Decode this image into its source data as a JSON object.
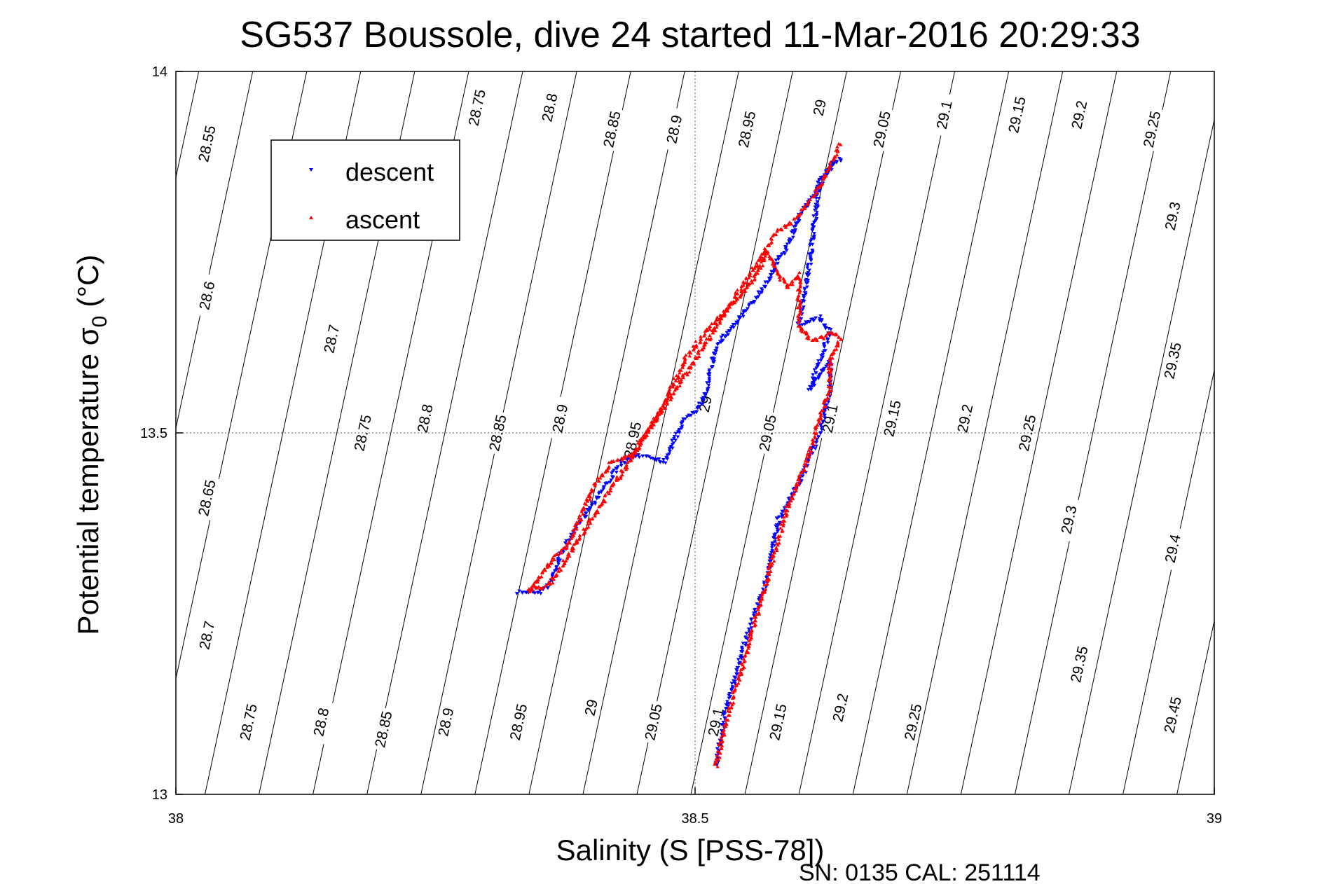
{
  "chart_data": {
    "type": "scatter",
    "title": "SG537 Boussole, dive 24 started 11-Mar-2016 20:29:33",
    "xlabel": "Salinity (S [PSS-78])",
    "ylabel_main": "Potential temperature σ",
    "ylabel_sub": "0",
    "ylabel_unit": "(°C)",
    "xlim": [
      38,
      39
    ],
    "ylim": [
      13,
      14
    ],
    "xticks": [
      38,
      38.5,
      39
    ],
    "xtick_labels": [
      "38",
      "38.5",
      "39"
    ],
    "yticks": [
      13,
      13.5,
      14
    ],
    "ytick_labels": [
      "13",
      "13.5",
      "14"
    ],
    "grid": true,
    "legend_placement": "top-left",
    "footer": "SN: 0135  CAL: 251114",
    "colors": {
      "descent": "#0000ff",
      "ascent": "#ff0000",
      "contour": "#000000",
      "grid": "#555555"
    },
    "contour_labels": [
      "28.55",
      "28.6",
      "28.65",
      "28.7",
      "28.75",
      "28.8",
      "28.85",
      "28.9",
      "28.95",
      "29",
      "29.05",
      "29.1",
      "29.15",
      "29.2",
      "29.25",
      "29.3",
      "29.35",
      "29.4",
      "29.45"
    ],
    "contour_label_positions": [
      {
        "text": "28.55",
        "s": 38.03,
        "t": 13.9
      },
      {
        "text": "28.75",
        "s": 38.29,
        "t": 13.95
      },
      {
        "text": "28.8",
        "s": 38.36,
        "t": 13.95
      },
      {
        "text": "28.85",
        "s": 38.42,
        "t": 13.92
      },
      {
        "text": "28.9",
        "s": 38.48,
        "t": 13.92
      },
      {
        "text": "28.95",
        "s": 38.55,
        "t": 13.92
      },
      {
        "text": "29",
        "s": 38.62,
        "t": 13.95
      },
      {
        "text": "29.05",
        "s": 38.68,
        "t": 13.92
      },
      {
        "text": "29.1",
        "s": 38.74,
        "t": 13.94
      },
      {
        "text": "29.15",
        "s": 38.81,
        "t": 13.94
      },
      {
        "text": "29.2",
        "s": 38.87,
        "t": 13.94
      },
      {
        "text": "29.25",
        "s": 38.94,
        "t": 13.92
      },
      {
        "text": "28.6",
        "s": 38.03,
        "t": 13.69
      },
      {
        "text": "28.7",
        "s": 38.15,
        "t": 13.63
      },
      {
        "text": "29.3",
        "s": 38.96,
        "t": 13.8
      },
      {
        "text": "29.35",
        "s": 38.96,
        "t": 13.6
      },
      {
        "text": "28.65",
        "s": 38.03,
        "t": 13.41
      },
      {
        "text": "28.75",
        "s": 38.18,
        "t": 13.5
      },
      {
        "text": "28.8",
        "s": 38.24,
        "t": 13.52
      },
      {
        "text": "28.85",
        "s": 38.31,
        "t": 13.5
      },
      {
        "text": "28.9",
        "s": 38.37,
        "t": 13.52
      },
      {
        "text": "28.95",
        "s": 38.44,
        "t": 13.49
      },
      {
        "text": "29",
        "s": 38.51,
        "t": 13.54
      },
      {
        "text": "29.05",
        "s": 38.57,
        "t": 13.5
      },
      {
        "text": "29.1",
        "s": 38.63,
        "t": 13.52
      },
      {
        "text": "29.15",
        "s": 38.69,
        "t": 13.52
      },
      {
        "text": "29.2",
        "s": 38.76,
        "t": 13.52
      },
      {
        "text": "29.25",
        "s": 38.82,
        "t": 13.5
      },
      {
        "text": "29.3",
        "s": 38.86,
        "t": 13.38
      },
      {
        "text": "29.4",
        "s": 38.96,
        "t": 13.34
      },
      {
        "text": "28.7",
        "s": 38.03,
        "t": 13.22
      },
      {
        "text": "29.35",
        "s": 38.87,
        "t": 13.18
      },
      {
        "text": "29.45",
        "s": 38.96,
        "t": 13.11
      },
      {
        "text": "28.75",
        "s": 38.07,
        "t": 13.1
      },
      {
        "text": "28.8",
        "s": 38.14,
        "t": 13.1
      },
      {
        "text": "28.85",
        "s": 38.2,
        "t": 13.09
      },
      {
        "text": "28.9",
        "s": 38.26,
        "t": 13.1
      },
      {
        "text": "28.95",
        "s": 38.33,
        "t": 13.1
      },
      {
        "text": "29",
        "s": 38.4,
        "t": 13.12
      },
      {
        "text": "29.05",
        "s": 38.46,
        "t": 13.1
      },
      {
        "text": "29.1",
        "s": 38.52,
        "t": 13.1
      },
      {
        "text": "29.15",
        "s": 38.58,
        "t": 13.1
      },
      {
        "text": "29.2",
        "s": 38.64,
        "t": 13.12
      },
      {
        "text": "29.25",
        "s": 38.71,
        "t": 13.1
      }
    ],
    "series": [
      {
        "name": "descent",
        "marker": "triangle-down",
        "path": [
          [
            38.33,
            13.28
          ],
          [
            38.34,
            13.28
          ],
          [
            38.35,
            13.28
          ],
          [
            38.36,
            13.29
          ],
          [
            38.37,
            13.33
          ],
          [
            38.39,
            13.38
          ],
          [
            38.41,
            13.42
          ],
          [
            38.43,
            13.46
          ],
          [
            38.45,
            13.47
          ],
          [
            38.47,
            13.46
          ],
          [
            38.48,
            13.49
          ],
          [
            38.49,
            13.52
          ],
          [
            38.5,
            13.53
          ],
          [
            38.51,
            13.55
          ],
          [
            38.52,
            13.62
          ],
          [
            38.55,
            13.67
          ],
          [
            38.57,
            13.71
          ],
          [
            38.58,
            13.74
          ],
          [
            38.59,
            13.76
          ],
          [
            38.6,
            13.8
          ],
          [
            38.62,
            13.84
          ],
          [
            38.63,
            13.87
          ],
          [
            38.64,
            13.88
          ],
          [
            38.62,
            13.85
          ],
          [
            38.61,
            13.73
          ],
          [
            38.6,
            13.65
          ],
          [
            38.62,
            13.66
          ],
          [
            38.63,
            13.64
          ],
          [
            38.62,
            13.6
          ],
          [
            38.61,
            13.56
          ],
          [
            38.63,
            13.6
          ],
          [
            38.63,
            13.56
          ],
          [
            38.62,
            13.5
          ],
          [
            38.6,
            13.43
          ],
          [
            38.58,
            13.38
          ],
          [
            38.57,
            13.3
          ],
          [
            38.55,
            13.22
          ],
          [
            38.53,
            13.12
          ],
          [
            38.52,
            13.04
          ]
        ]
      },
      {
        "name": "ascent",
        "marker": "triangle-up",
        "path": [
          [
            38.52,
            13.04
          ],
          [
            38.53,
            13.1
          ],
          [
            38.55,
            13.2
          ],
          [
            38.57,
            13.3
          ],
          [
            38.59,
            13.4
          ],
          [
            38.61,
            13.47
          ],
          [
            38.62,
            13.52
          ],
          [
            38.63,
            13.56
          ],
          [
            38.63,
            13.6
          ],
          [
            38.64,
            13.63
          ],
          [
            38.63,
            13.64
          ],
          [
            38.62,
            13.63
          ],
          [
            38.61,
            13.63
          ],
          [
            38.6,
            13.65
          ],
          [
            38.6,
            13.7
          ],
          [
            38.6,
            13.72
          ],
          [
            38.59,
            13.7
          ],
          [
            38.58,
            13.72
          ],
          [
            38.57,
            13.75
          ],
          [
            38.56,
            13.72
          ],
          [
            38.55,
            13.7
          ],
          [
            38.53,
            13.67
          ],
          [
            38.51,
            13.64
          ],
          [
            38.49,
            13.6
          ],
          [
            38.47,
            13.54
          ],
          [
            38.44,
            13.47
          ],
          [
            38.42,
            13.46
          ],
          [
            38.4,
            13.42
          ],
          [
            38.38,
            13.35
          ],
          [
            38.36,
            13.32
          ],
          [
            38.35,
            13.3
          ],
          [
            38.34,
            13.28
          ],
          [
            38.36,
            13.29
          ],
          [
            38.58,
            13.78
          ],
          [
            38.6,
            13.8
          ],
          [
            38.62,
            13.84
          ],
          [
            38.63,
            13.87
          ],
          [
            38.64,
            13.9
          ]
        ]
      }
    ]
  }
}
